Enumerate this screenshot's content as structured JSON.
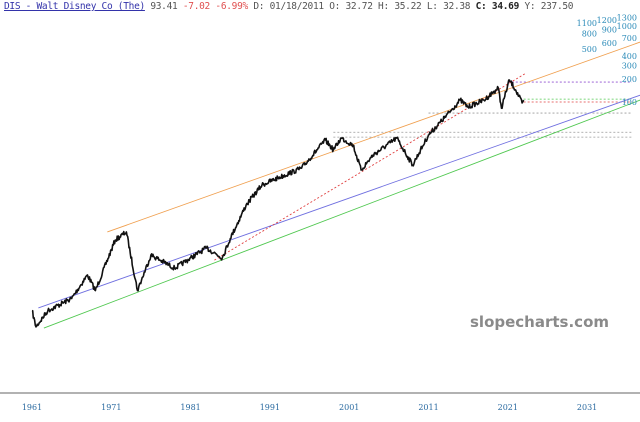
{
  "header": {
    "symbol": "DIS - Walt Disney Co (The)",
    "last": "93.41",
    "change": "-7.02",
    "change_pct": "-6.99%",
    "date_label": "D:",
    "date": "01/18/2011",
    "open_label": "O:",
    "open": "32.72",
    "high_label": "H:",
    "high": "35.22",
    "low_label": "L:",
    "low": "32.38",
    "close_label": "C:",
    "close": "34.69",
    "y_label": "Y:",
    "y_value": "237.50"
  },
  "watermark": "slopecharts.com",
  "colors": {
    "price": "#111111",
    "orange": "#f0a050",
    "blue": "#7070e0",
    "green": "#50c850",
    "red": "#e04040",
    "purple": "#9050d0",
    "gray": "#999999",
    "axis": "#2a8ab8"
  },
  "chart_data": {
    "type": "line",
    "yscale": "log",
    "ylim": [
      0.08,
      1400
    ],
    "xlim": [
      1957,
      2038
    ],
    "yticks": [
      "1300",
      "1200",
      "1100",
      "1000",
      "900",
      "800",
      "700",
      "600",
      "500",
      "400",
      "300",
      "200",
      "100"
    ],
    "xticks": [
      "1961",
      "1971",
      "1981",
      "1991",
      "2001",
      "2011",
      "2021",
      "2031"
    ],
    "price": {
      "x": [
        1961.0,
        1961.5,
        1963,
        1966,
        1968,
        1969,
        1971.5,
        1972.9,
        1974.3,
        1976,
        1979,
        1983,
        1985,
        1986,
        1988,
        1990,
        1992,
        1995,
        1998,
        1999,
        2000,
        2001.5,
        2002.5,
        2004,
        2007,
        2009,
        2011,
        2013,
        2015,
        2016,
        2018,
        2019.8,
        2020.2,
        2021.2,
        2022,
        2022.8,
        2023
      ],
      "y": [
        0.18,
        0.11,
        0.18,
        0.26,
        0.53,
        0.33,
        1.53,
        1.95,
        0.33,
        0.97,
        0.65,
        1.2,
        0.89,
        1.6,
        4.4,
        8.1,
        10,
        13.5,
        31.6,
        23.4,
        33.5,
        27,
        12.7,
        20,
        33.5,
        14.8,
        36.8,
        61.6,
        106,
        86,
        106,
        153,
        83,
        195,
        144,
        97,
        106
      ]
    },
    "trendlines": [
      {
        "color": "orange",
        "style": "solid",
        "from": [
          1970.5,
          1.95
        ],
        "to": [
          2037.7,
          615
        ]
      },
      {
        "color": "blue",
        "style": "solid",
        "from": [
          1961.8,
          0.195
        ],
        "to": [
          2037.7,
          123
        ]
      },
      {
        "color": "green",
        "style": "solid",
        "from": [
          1962.5,
          0.106
        ],
        "to": [
          2037.7,
          106
        ]
      },
      {
        "color": "red",
        "style": "dotted",
        "from": [
          1984,
          0.83
        ],
        "to": [
          2023.3,
          240
        ]
      }
    ],
    "levels": [
      {
        "color": "purple",
        "value": 183,
        "from": 2021
      },
      {
        "color": "green",
        "value": 109,
        "from": 2023
      },
      {
        "color": "red",
        "value": 100,
        "from": 2023
      },
      {
        "color": "gray",
        "value": 71.5,
        "from": 2011
      },
      {
        "color": "gray",
        "value": 40,
        "from": 1999
      },
      {
        "color": "gray",
        "value": 34.5,
        "from": 1999
      }
    ]
  }
}
